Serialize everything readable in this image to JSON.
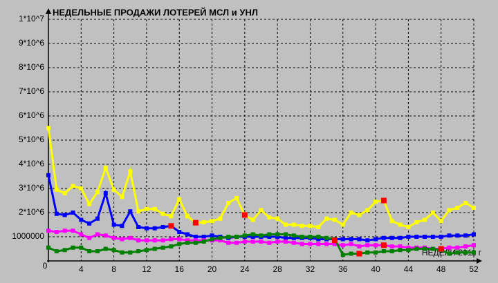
{
  "chart_data": {
    "type": "line",
    "title": "НЕДЕЛЬНЫЕ ПРОДАЖИ ЛОТЕРЕЙ МСЛ и УНЛ",
    "x_label": "НЕДЕЛИ 2011 г",
    "x": [
      0,
      1,
      2,
      3,
      4,
      5,
      6,
      7,
      8,
      9,
      10,
      11,
      12,
      13,
      14,
      15,
      16,
      17,
      18,
      19,
      20,
      21,
      22,
      23,
      24,
      25,
      26,
      27,
      28,
      29,
      30,
      31,
      32,
      33,
      34,
      35,
      36,
      37,
      38,
      39,
      40,
      41,
      42,
      43,
      44,
      45,
      46,
      47,
      48,
      49,
      50,
      51,
      52
    ],
    "xlim": [
      0,
      52
    ],
    "xticks": [
      0,
      4,
      8,
      12,
      16,
      20,
      24,
      28,
      32,
      36,
      40,
      44,
      48,
      52
    ],
    "ylim": [
      0,
      10000000
    ],
    "yticks": [
      1000000,
      {
        "value": 2000000,
        "label": "2*10^6"
      },
      {
        "value": 3000000,
        "label": "3*10^6"
      },
      {
        "value": 4000000,
        "label": "4*10^6"
      },
      {
        "value": 5000000,
        "label": "5*10^6"
      },
      {
        "value": 6000000,
        "label": "6*10^6"
      },
      {
        "value": 7000000,
        "label": "7*10^6"
      },
      {
        "value": 8000000,
        "label": "8*10^6"
      },
      {
        "value": 9000000,
        "label": "9*10^6"
      },
      {
        "value": 10000000,
        "label": "1*10^7"
      }
    ],
    "grid": true,
    "series": [
      {
        "color": "#ffff00",
        "values": [
          5500000,
          2950000,
          2800000,
          3100000,
          3000000,
          2350000,
          2850000,
          3850000,
          2950000,
          2650000,
          3700000,
          2050000,
          2150000,
          2150000,
          1950000,
          1850000,
          2550000,
          1850000,
          1580000,
          1600000,
          1650000,
          1750000,
          2400000,
          2600000,
          1900000,
          1700000,
          2100000,
          1800000,
          1750000,
          1500000,
          1500000,
          1450000,
          1450000,
          1400000,
          1750000,
          1700000,
          1500000,
          2000000,
          1900000,
          2100000,
          2450000,
          2500000,
          1650000,
          1500000,
          1400000,
          1600000,
          1700000,
          2000000,
          1650000,
          2100000,
          2200000,
          2400000,
          2200000
        ]
      },
      {
        "color": "#0000ff",
        "values": [
          3550000,
          1950000,
          1900000,
          2000000,
          1700000,
          1550000,
          1750000,
          2800000,
          1500000,
          1450000,
          2050000,
          1400000,
          1350000,
          1350000,
          1400000,
          1450000,
          1200000,
          1100000,
          1000000,
          1000000,
          1050000,
          1000000,
          950000,
          1000000,
          1000000,
          1000000,
          1000000,
          1000000,
          1000000,
          950000,
          950000,
          950000,
          950000,
          900000,
          900000,
          900000,
          900000,
          900000,
          900000,
          850000,
          900000,
          950000,
          950000,
          950000,
          1000000,
          1000000,
          1000000,
          1000000,
          1000000,
          1050000,
          1050000,
          1050000,
          1100000
        ]
      },
      {
        "color": "#ff00ff",
        "values": [
          1250000,
          1200000,
          1250000,
          1250000,
          1100000,
          950000,
          1100000,
          1050000,
          950000,
          900000,
          950000,
          850000,
          850000,
          850000,
          850000,
          900000,
          900000,
          850000,
          850000,
          850000,
          850000,
          850000,
          750000,
          750000,
          800000,
          800000,
          800000,
          750000,
          800000,
          800000,
          750000,
          700000,
          700000,
          700000,
          700000,
          700000,
          650000,
          700000,
          600000,
          650000,
          650000,
          650000,
          600000,
          600000,
          550000,
          550000,
          550000,
          500000,
          500000,
          550000,
          550000,
          600000,
          650000
        ]
      },
      {
        "color": "#008000",
        "values": [
          550000,
          400000,
          450000,
          550000,
          550000,
          400000,
          400000,
          500000,
          450000,
          350000,
          350000,
          400000,
          450000,
          500000,
          550000,
          600000,
          700000,
          750000,
          750000,
          800000,
          900000,
          950000,
          1000000,
          1000000,
          1050000,
          1100000,
          1050000,
          1100000,
          1100000,
          1100000,
          1050000,
          1000000,
          1000000,
          1000000,
          950000,
          900000,
          250000,
          300000,
          300000,
          350000,
          350000,
          400000,
          400000,
          450000,
          450000,
          500000,
          500000,
          500000,
          450000,
          300000,
          350000,
          350000,
          350000
        ]
      }
    ],
    "points": {
      "color": "#ff0000",
      "x": [
        15,
        18,
        24,
        35,
        38,
        41,
        41,
        48
      ],
      "values": [
        1450000,
        1580000,
        1900000,
        850000,
        300000,
        2500000,
        650000,
        500000
      ]
    }
  }
}
